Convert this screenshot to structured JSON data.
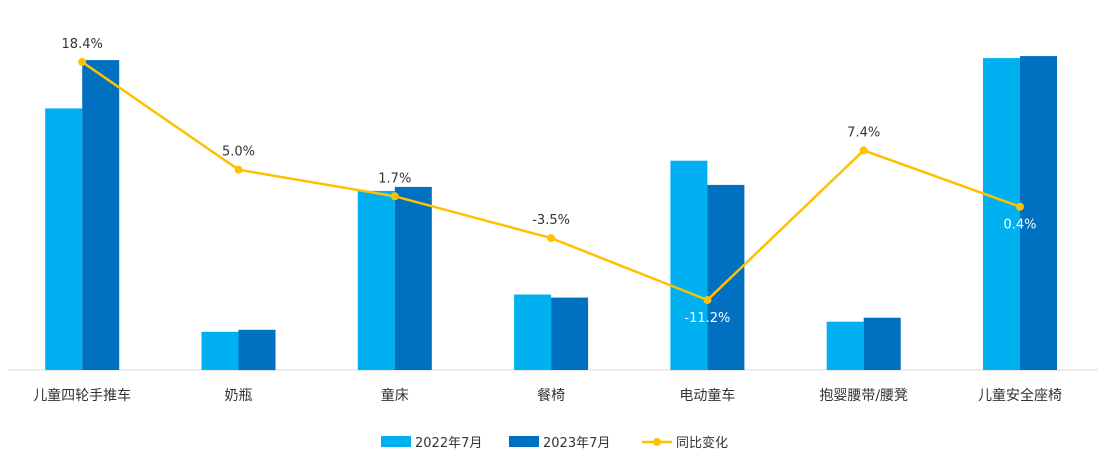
{
  "chart_data": {
    "type": "bar",
    "categories": [
      "儿童四轮手推车",
      "奶瓶",
      "童床",
      "餐椅",
      "电动童车",
      "抱婴腰带/腰凳",
      "儿童安全座椅"
    ],
    "series": [
      {
        "name": "2022年7月",
        "kind": "bar",
        "color": "#00b0f0",
        "values": [
          260,
          38,
          178,
          75,
          208,
          48,
          310
        ]
      },
      {
        "name": "2023年7月",
        "kind": "bar",
        "color": "#0070c0",
        "values": [
          308,
          40,
          182,
          72,
          184,
          52,
          312
        ]
      },
      {
        "name": "同比变化",
        "kind": "line",
        "color": "#ffc000",
        "values": [
          18.4,
          5.0,
          1.7,
          -3.5,
          -11.2,
          7.4,
          0.4
        ]
      }
    ],
    "data_labels": [
      "18.4%",
      "5.0%",
      "1.7%",
      "-3.5%",
      "-11.2%",
      "7.4%",
      "0.4%"
    ],
    "bar_ylim": [
      0,
      320
    ],
    "line_ylim": [
      -11.2,
      18.4
    ],
    "legend_position": "bottom",
    "grid": false
  }
}
